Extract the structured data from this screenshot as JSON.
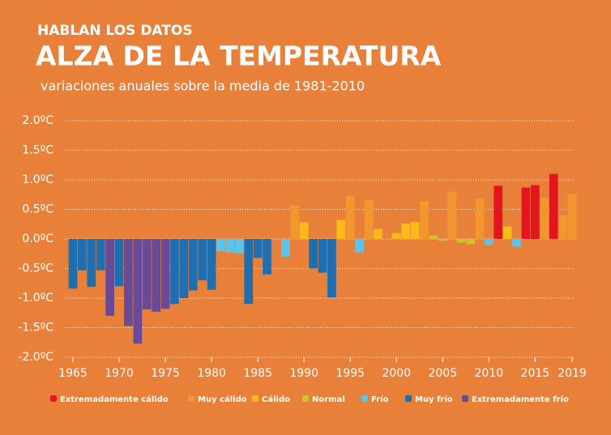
{
  "chart_data": {
    "type": "bar",
    "kicker": "HABLAN LOS DATOS",
    "title": "ALZA DE LA TEMPERATURA",
    "subtitle": "variaciones anuales sobre la media de  1981-2010",
    "x": [
      1965,
      1966,
      1967,
      1968,
      1969,
      1970,
      1971,
      1972,
      1973,
      1974,
      1975,
      1976,
      1977,
      1978,
      1979,
      1980,
      1981,
      1982,
      1983,
      1984,
      1985,
      1986,
      1987,
      1988,
      1989,
      1990,
      1991,
      1992,
      1993,
      1994,
      1995,
      1996,
      1997,
      1998,
      1999,
      2000,
      2001,
      2002,
      2003,
      2004,
      2005,
      2006,
      2007,
      2008,
      2009,
      2010,
      2011,
      2012,
      2013,
      2014,
      2015,
      2016,
      2017,
      2018,
      2019
    ],
    "xlim": [
      1965,
      2019
    ],
    "xticks": [
      1965,
      1970,
      1975,
      1980,
      1985,
      1990,
      1995,
      2000,
      2005,
      2010,
      2015,
      2019
    ],
    "ylim": [
      -2,
      2
    ],
    "yticks": [
      {
        "value": -2,
        "label": "-2.0ºC"
      },
      {
        "value": -1.5,
        "label": "-1.5ºC"
      },
      {
        "value": -1,
        "label": "-1.0ºC"
      },
      {
        "value": -0.5,
        "label": "-0.5ºC"
      },
      {
        "value": 0,
        "label": "0.0ºC"
      },
      {
        "value": 0.5,
        "label": "0.5ºC"
      },
      {
        "value": 1,
        "label": "1.0ºC"
      },
      {
        "value": 1.5,
        "label": "1.5ºC"
      },
      {
        "value": 2,
        "label": "2.0ºC"
      }
    ],
    "grid": true,
    "series": [
      {
        "name": "Extremadamente cálido",
        "color": "#e3161f",
        "values": [
          null,
          null,
          null,
          null,
          null,
          null,
          null,
          null,
          null,
          null,
          null,
          null,
          null,
          null,
          null,
          null,
          null,
          null,
          null,
          null,
          null,
          null,
          null,
          null,
          null,
          null,
          null,
          null,
          null,
          null,
          null,
          null,
          null,
          null,
          null,
          null,
          null,
          null,
          null,
          null,
          null,
          null,
          null,
          null,
          null,
          null,
          0.9,
          null,
          null,
          0.87,
          0.91,
          null,
          1.1,
          null,
          null
        ]
      },
      {
        "name": "Muy cálido",
        "color": "#f29630",
        "values": [
          null,
          null,
          null,
          null,
          null,
          null,
          null,
          null,
          null,
          null,
          null,
          null,
          null,
          null,
          null,
          null,
          null,
          null,
          null,
          null,
          null,
          null,
          null,
          null,
          0.57,
          null,
          null,
          null,
          null,
          null,
          0.73,
          null,
          0.66,
          null,
          null,
          null,
          null,
          null,
          0.64,
          null,
          null,
          0.8,
          null,
          null,
          0.68,
          null,
          null,
          null,
          null,
          null,
          null,
          0.7,
          null,
          0.4,
          0.76
        ]
      },
      {
        "name": "Cálido",
        "color": "#fbb91a",
        "values": [
          null,
          null,
          null,
          null,
          null,
          null,
          null,
          null,
          null,
          null,
          null,
          null,
          null,
          null,
          null,
          null,
          null,
          null,
          null,
          null,
          null,
          null,
          null,
          null,
          null,
          0.28,
          null,
          null,
          null,
          0.32,
          null,
          null,
          null,
          0.17,
          null,
          0.1,
          0.26,
          0.29,
          null,
          null,
          null,
          null,
          null,
          null,
          null,
          null,
          null,
          0.21,
          null,
          null,
          null,
          null,
          null,
          null,
          null
        ]
      },
      {
        "name": "Normal",
        "color": "#c9c42c",
        "values": [
          null,
          null,
          null,
          null,
          null,
          null,
          null,
          null,
          null,
          null,
          null,
          null,
          null,
          null,
          null,
          null,
          null,
          null,
          null,
          null,
          null,
          null,
          null,
          null,
          null,
          null,
          null,
          null,
          null,
          null,
          null,
          null,
          null,
          null,
          null,
          null,
          null,
          null,
          null,
          0.06,
          -0.03,
          null,
          -0.06,
          -0.09,
          null,
          null,
          null,
          null,
          null,
          null,
          null,
          null,
          null,
          null,
          null
        ]
      },
      {
        "name": "Frío",
        "color": "#5bc4e8",
        "values": [
          null,
          null,
          null,
          null,
          null,
          null,
          null,
          null,
          null,
          null,
          null,
          null,
          null,
          null,
          null,
          null,
          -0.21,
          -0.23,
          -0.24,
          null,
          null,
          null,
          null,
          -0.3,
          null,
          null,
          null,
          null,
          null,
          null,
          null,
          -0.23,
          null,
          null,
          null,
          null,
          null,
          null,
          null,
          null,
          null,
          null,
          null,
          null,
          null,
          -0.1,
          null,
          null,
          -0.13,
          null,
          null,
          null,
          null,
          null,
          null
        ]
      },
      {
        "name": "Muy frío",
        "color": "#1f6eb0",
        "values": [
          -0.84,
          -0.53,
          -0.81,
          -0.53,
          null,
          -0.8,
          null,
          null,
          null,
          null,
          null,
          -1.1,
          -1.0,
          -0.87,
          -0.7,
          -0.86,
          null,
          null,
          null,
          -1.1,
          -0.32,
          -0.6,
          null,
          null,
          null,
          null,
          -0.5,
          -0.57,
          -0.99,
          null,
          null,
          null,
          null,
          null,
          null,
          null,
          null,
          null,
          null,
          null,
          null,
          null,
          null,
          null,
          null,
          null,
          null,
          null,
          null,
          null,
          null,
          null,
          null,
          null,
          null
        ]
      },
      {
        "name": "Extremadamente frío",
        "color": "#6a4a96",
        "values": [
          null,
          null,
          null,
          null,
          -1.3,
          null,
          -1.47,
          -1.77,
          -1.19,
          -1.23,
          -1.18,
          null,
          null,
          null,
          null,
          null,
          null,
          null,
          null,
          null,
          null,
          null,
          null,
          null,
          null,
          null,
          null,
          null,
          null,
          null,
          null,
          null,
          null,
          null,
          null,
          null,
          null,
          null,
          null,
          null,
          null,
          null,
          null,
          null,
          null,
          null,
          null,
          null,
          null,
          null,
          null,
          null,
          null,
          null,
          null
        ]
      }
    ]
  }
}
